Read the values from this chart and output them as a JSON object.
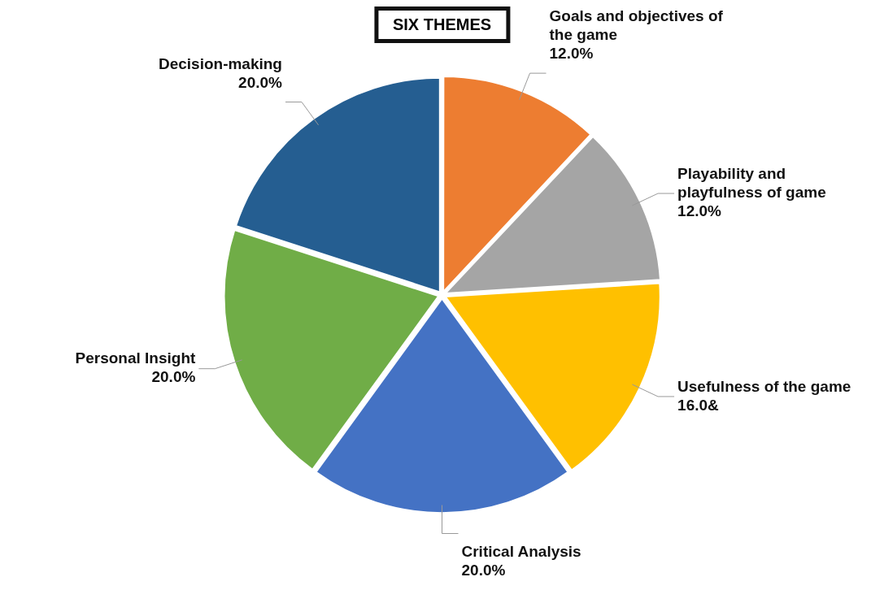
{
  "chart_data": {
    "type": "pie",
    "title": "SIX THEMES",
    "categories": [
      "Goals and objectives of the game",
      "Playability and playfulness of game",
      "Usefulness of the game",
      "Critical Analysis",
      "Personal Insight",
      "Decision-making"
    ],
    "values": [
      12,
      12,
      16,
      20,
      20,
      20
    ],
    "value_labels": [
      "12.0%",
      "12.0%",
      "16.0&",
      "20.0%",
      "20.0%",
      "20.0%"
    ],
    "colors": [
      "#ed7d31",
      "#a5a5a5",
      "#ffc000",
      "#4472c4",
      "#70ad47",
      "#255e91"
    ],
    "legend": false
  }
}
